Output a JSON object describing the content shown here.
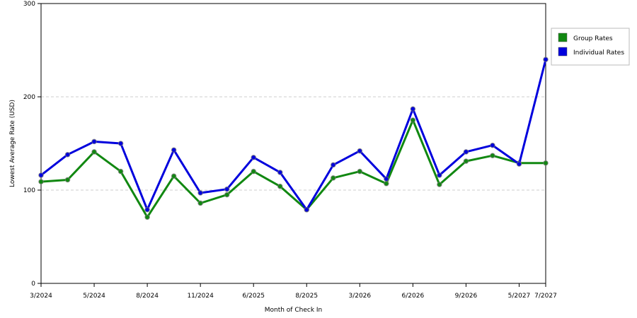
{
  "chart_data": {
    "type": "line",
    "title": "",
    "xlabel": "Month of Check In",
    "ylabel": "Lowest Average Rate (USD)",
    "ylim": [
      0,
      300
    ],
    "yticks": [
      "0",
      "100",
      "200",
      "300"
    ],
    "grid": {
      "horizontal": true,
      "style": "dashed"
    },
    "legend_position": "right",
    "x_tick_labels": [
      {
        "index": 0,
        "label": "3/2024"
      },
      {
        "index": 2,
        "label": "5/2024"
      },
      {
        "index": 4,
        "label": "8/2024"
      },
      {
        "index": 6,
        "label": "11/2024"
      },
      {
        "index": 8,
        "label": "6/2025"
      },
      {
        "index": 10,
        "label": "8/2025"
      },
      {
        "index": 12,
        "label": "3/2026"
      },
      {
        "index": 14,
        "label": "6/2026"
      },
      {
        "index": 16,
        "label": "9/2026"
      },
      {
        "index": 18,
        "label": "5/2027"
      },
      {
        "index": 19,
        "label": "7/2027"
      }
    ],
    "series": [
      {
        "name": "Group Rates",
        "color": "#118811",
        "values": [
          109,
          111,
          141,
          120,
          71,
          115,
          86,
          95,
          120,
          104,
          79,
          113,
          120,
          107,
          175,
          106,
          131,
          137,
          129,
          129
        ]
      },
      {
        "name": "Individual Rates",
        "color": "#0000dd",
        "values": [
          116,
          138,
          152,
          150,
          79,
          143,
          97,
          101,
          135,
          119,
          79,
          127,
          142,
          112,
          187,
          116,
          141,
          148,
          128,
          240
        ]
      }
    ]
  }
}
